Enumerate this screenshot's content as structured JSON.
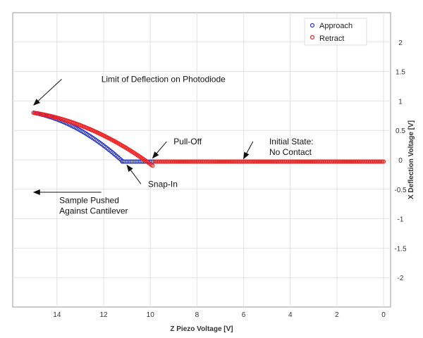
{
  "chart_data": {
    "type": "scatter",
    "xlabel": "Z Piezo Voltage [V]",
    "ylabel": "X Deflection Voltage [V]",
    "xlim": [
      15.9,
      -0.3
    ],
    "ylim": [
      -2.5,
      2.5
    ],
    "x_reversed": true,
    "y_axis_side": "right",
    "grid": true,
    "legend": "top-right",
    "x_ticks": [
      14,
      12,
      10,
      8,
      6,
      4,
      2,
      0
    ],
    "y_ticks": [
      2,
      1.5,
      1,
      0.5,
      0,
      -0.5,
      -1,
      -1.5,
      -2
    ],
    "x_tick_labels": [
      "14",
      "12",
      "10",
      "8",
      "6",
      "4",
      "2",
      "0"
    ],
    "y_tick_labels": [
      "2",
      "1.5",
      "1",
      "0.5",
      "0",
      "-0.5",
      "-1",
      "-1.5",
      "-2"
    ],
    "series": [
      {
        "name": "Approach",
        "color": "#2233cc",
        "segments": [
          {
            "x_from": 15.0,
            "x_to": 11.2,
            "shape": "convex",
            "y_start": 0.8,
            "y_end": -0.02,
            "step": 0.06
          },
          {
            "x_from": 11.2,
            "x_to": 9.8,
            "shape": "flat",
            "y": -0.03,
            "step": 0.07
          }
        ]
      },
      {
        "name": "Retract",
        "color": "#ee2222",
        "segments": [
          {
            "x_from": 15.0,
            "x_to": 9.9,
            "shape": "convex",
            "y_start": 0.8,
            "y_end": -0.1,
            "step": 0.05
          },
          {
            "x_from": 9.8,
            "x_to": 0.0,
            "shape": "flat",
            "y": -0.03,
            "step": 0.045
          }
        ]
      }
    ],
    "annotations": [
      {
        "id": "limit",
        "lines": [
          "Limit of Deflection on Photodiode"
        ],
        "text_at": [
          12.1,
          1.37
        ],
        "arrow_from": [
          13.8,
          1.37
        ],
        "arrow_to": [
          15.0,
          0.93
        ]
      },
      {
        "id": "pulloff",
        "lines": [
          "Pull-Off"
        ],
        "text_at": [
          9.0,
          0.31
        ],
        "arrow_from": [
          9.3,
          0.31
        ],
        "arrow_to": [
          9.9,
          0.03
        ]
      },
      {
        "id": "initial",
        "lines": [
          "Initial State:",
          "No Contact"
        ],
        "text_at": [
          4.9,
          0.31
        ],
        "arrow_from": [
          5.6,
          0.31
        ],
        "arrow_to": [
          6.0,
          0.02
        ]
      },
      {
        "id": "snapin",
        "lines": [
          "Snap-In"
        ],
        "text_at": [
          10.1,
          -0.41
        ],
        "arrow_from": [
          10.4,
          -0.41
        ],
        "arrow_to": [
          11.0,
          -0.09
        ]
      },
      {
        "id": "sample",
        "lines": [
          "Sample Pushed",
          "Against Cantilever"
        ],
        "text_at": [
          13.9,
          -0.69
        ],
        "arrow_from": [
          12.1,
          -0.55
        ],
        "arrow_to": [
          15.0,
          -0.55
        ]
      }
    ]
  }
}
